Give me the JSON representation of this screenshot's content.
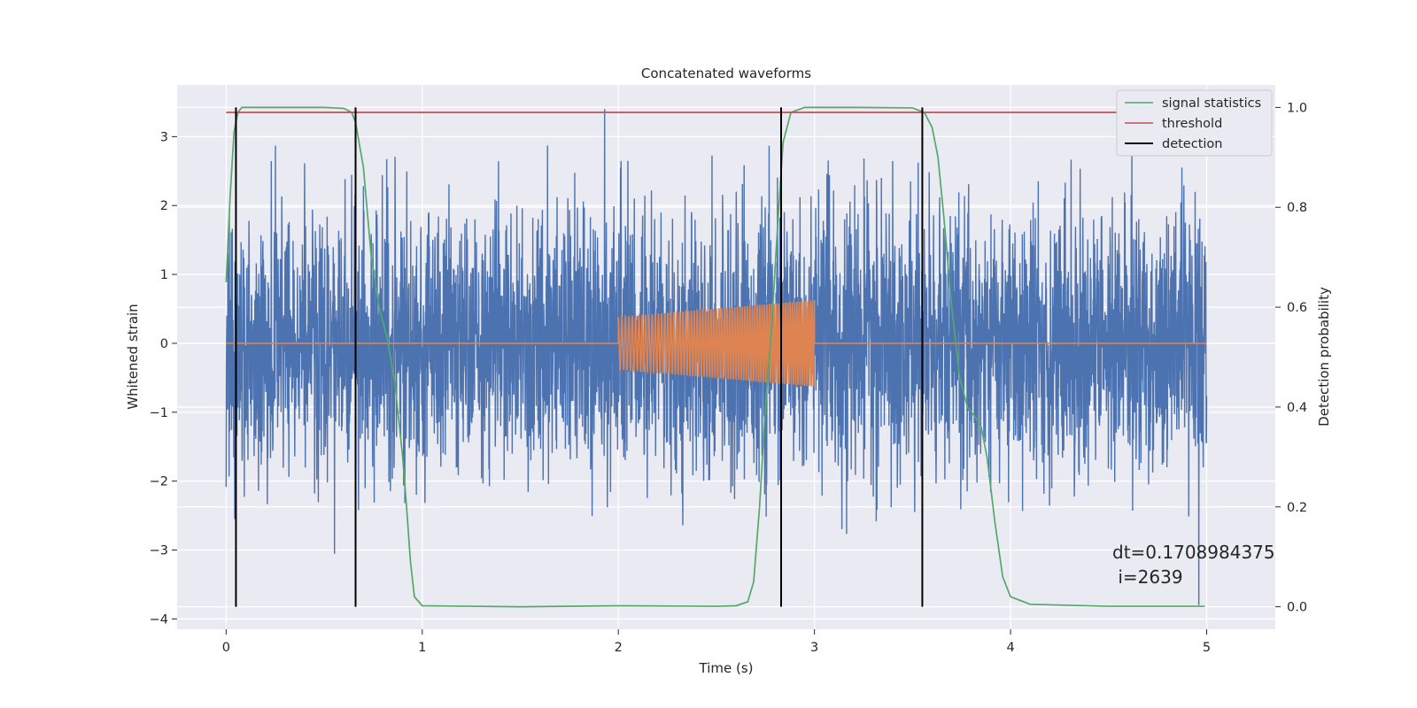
{
  "chart_data": {
    "type": "line",
    "title": "Concatenated waveforms",
    "xlabel": "Time (s)",
    "ylabel": "Whitened strain",
    "ylabel_right": "Detection probability",
    "xlim": [
      -0.25,
      5.35
    ],
    "ylim": [
      -4.15,
      3.75
    ],
    "ylim_right": [
      -0.045,
      1.045
    ],
    "x_ticks": [
      0,
      1,
      2,
      3,
      4,
      5
    ],
    "y_ticks": [
      -4,
      -3,
      -2,
      -1,
      0,
      1,
      2,
      3
    ],
    "y_tick_labels": [
      "−4",
      "−3",
      "−2",
      "−1",
      "0",
      "1",
      "2",
      "3"
    ],
    "y_right_ticks": [
      0.0,
      0.2,
      0.4,
      0.6,
      0.8,
      1.0
    ],
    "y_right_tick_labels": [
      "0.0",
      "0.2",
      "0.4",
      "0.6",
      "0.8",
      "1.0"
    ],
    "grid": true,
    "legend_position": "top-right",
    "colors": {
      "strain": "#4c72b0",
      "template": "#dd8452",
      "signal_statistics": "#55a868",
      "threshold": "#c44e52",
      "detection": "#000000",
      "axes_background": "#eaeaf2",
      "grid": "#ffffff"
    },
    "series": [
      {
        "name": "",
        "axis": "left",
        "kind": "noise",
        "x_range": [
          0,
          5
        ],
        "amplitude_peaks": {
          "min": -3.8,
          "max": 3.4
        }
      },
      {
        "name": "",
        "axis": "left",
        "kind": "chirp",
        "x_range": [
          0,
          5
        ],
        "chirp_start": 2.0,
        "chirp_end": 3.0,
        "amplitude_start": 0.38,
        "amplitude_end": 0.63
      },
      {
        "name": "signal statistics",
        "axis": "right",
        "x": [
          0.0,
          0.02,
          0.04,
          0.06,
          0.08,
          0.1,
          0.15,
          0.3,
          0.5,
          0.6,
          0.64,
          0.66,
          0.7,
          0.74,
          0.78,
          0.82,
          0.86,
          0.9,
          0.92,
          0.94,
          0.96,
          1.0,
          1.5,
          2.0,
          2.5,
          2.6,
          2.66,
          2.69,
          2.72,
          2.75,
          2.78,
          2.81,
          2.84,
          2.88,
          2.95,
          3.2,
          3.5,
          3.56,
          3.6,
          3.63,
          3.66,
          3.7,
          3.74,
          3.78,
          3.82,
          3.85,
          3.88,
          3.92,
          3.96,
          4.0,
          4.1,
          4.5,
          4.99
        ],
        "y": [
          0.65,
          0.82,
          0.95,
          0.99,
          1.0,
          1.0,
          1.0,
          1.0,
          1.0,
          0.998,
          0.99,
          0.97,
          0.88,
          0.7,
          0.6,
          0.54,
          0.45,
          0.3,
          0.2,
          0.09,
          0.02,
          0.002,
          0.0,
          0.002,
          0.001,
          0.002,
          0.01,
          0.05,
          0.2,
          0.4,
          0.55,
          0.75,
          0.93,
          0.99,
          1.0,
          1.0,
          0.999,
          0.99,
          0.96,
          0.9,
          0.78,
          0.6,
          0.46,
          0.4,
          0.38,
          0.36,
          0.3,
          0.17,
          0.06,
          0.02,
          0.005,
          0.001,
          0.001
        ]
      },
      {
        "name": "threshold",
        "axis": "right",
        "x": [
          0.0,
          5.0
        ],
        "y": [
          0.99,
          0.99
        ]
      },
      {
        "name": "detection",
        "axis": "right",
        "x": [
          0.05,
          0.66,
          2.83,
          3.55
        ],
        "y_range": [
          0.0,
          1.0
        ]
      }
    ],
    "legend": [
      "signal statistics",
      "threshold",
      "detection"
    ],
    "annotation_lines": [
      "dt=0.1708984375",
      " i=2639"
    ]
  }
}
